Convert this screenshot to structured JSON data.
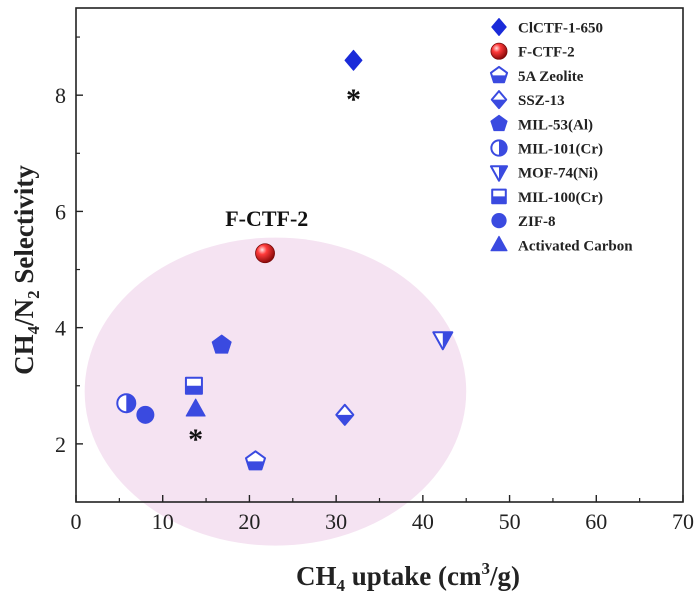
{
  "chart_data": {
    "type": "scatter",
    "xlabel": {
      "base": "CH",
      "sub": "4",
      "rest": " uptake (cm",
      "sup": "3",
      "end": "/g)"
    },
    "ylabel": {
      "base": "CH",
      "sub1": "4",
      "mid": "/N",
      "sub2": "2",
      "rest": " Selectivity"
    },
    "xlim": [
      0,
      70
    ],
    "ylim": [
      1,
      9.5
    ],
    "xticks": [
      0,
      10,
      20,
      30,
      40,
      50,
      60,
      70
    ],
    "yticks": [
      2,
      4,
      6,
      8
    ],
    "grid": false,
    "legend_position": "top-right",
    "series": [
      {
        "name": "ClCTF-1-650",
        "marker": "diamond-filled",
        "color": "#1a2bd9",
        "points": [
          {
            "x": 32.0,
            "y": 8.6
          }
        ]
      },
      {
        "name": "F-CTF-2",
        "marker": "sphere-red",
        "color": "#e02020",
        "points": [
          {
            "x": 21.8,
            "y": 5.28
          }
        ]
      },
      {
        "name": "5A Zeolite",
        "marker": "pentagon-half",
        "color": "#3a4ae0",
        "points": [
          {
            "x": 20.7,
            "y": 1.7
          }
        ]
      },
      {
        "name": "SSZ-13",
        "marker": "diamond-half",
        "color": "#3a4ae0",
        "points": [
          {
            "x": 31.0,
            "y": 2.5
          }
        ]
      },
      {
        "name": "MIL-53(Al)",
        "marker": "pentagon-filled",
        "color": "#3a4ae0",
        "points": [
          {
            "x": 16.8,
            "y": 3.7
          }
        ]
      },
      {
        "name": "MIL-101(Cr)",
        "marker": "circle-half",
        "color": "#3a4ae0",
        "points": [
          {
            "x": 5.8,
            "y": 2.7
          }
        ]
      },
      {
        "name": "MOF-74(Ni)",
        "marker": "triangle-down-half",
        "color": "#3a4ae0",
        "points": [
          {
            "x": 42.3,
            "y": 3.8
          }
        ]
      },
      {
        "name": "MIL-100(Cr)",
        "marker": "square-half",
        "color": "#3a4ae0",
        "points": [
          {
            "x": 13.6,
            "y": 3.0
          }
        ]
      },
      {
        "name": "ZIF-8",
        "marker": "circle-filled",
        "color": "#3a4ae0",
        "points": [
          {
            "x": 8.0,
            "y": 2.5
          }
        ]
      },
      {
        "name": "Activated Carbon",
        "marker": "triangle-up-filled",
        "color": "#3a4ae0",
        "points": [
          {
            "x": 13.8,
            "y": 2.6
          }
        ]
      }
    ],
    "annotations": [
      {
        "text": "F-CTF-2",
        "x": 22,
        "y": 5.75
      },
      {
        "text": "*",
        "x": 32.0,
        "y": 8.0
      },
      {
        "text": "*",
        "x": 13.8,
        "y": 2.15
      }
    ],
    "highlight_ellipse": {
      "cx": 23,
      "cy": 2.9,
      "rx": 22,
      "ry": 2.65,
      "color": "#f5e3f2"
    }
  }
}
